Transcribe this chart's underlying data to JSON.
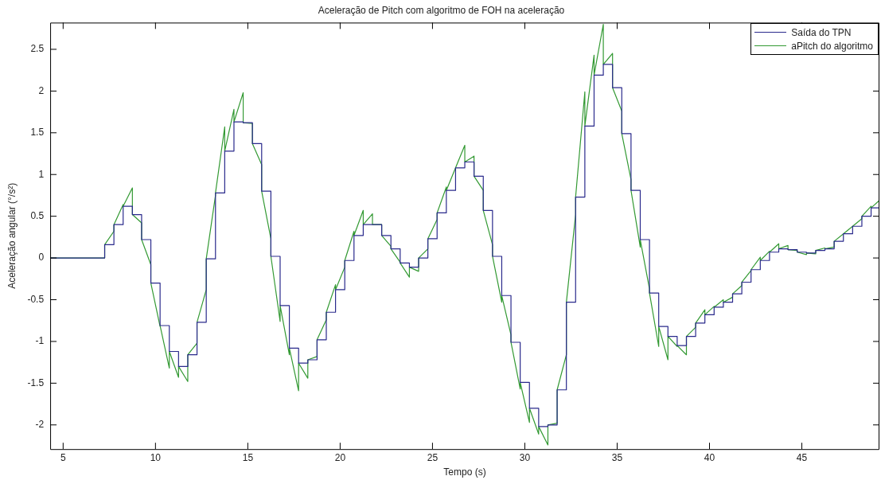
{
  "chart_data": {
    "type": "line",
    "title": "Aceleração de Pitch com algoritmo de FOH na aceleração",
    "xlabel": "Tempo (s)",
    "ylabel": "Aceleração angular (°/s²)",
    "xlim": [
      4.3,
      49.2
    ],
    "xticks": [
      5,
      10,
      15,
      20,
      25,
      30,
      35,
      40,
      45
    ],
    "ylim": [
      -2.29,
      2.82
    ],
    "yticks": [
      -2,
      -1.5,
      -1,
      -0.5,
      0,
      0.5,
      1,
      1.5,
      2,
      2.5
    ],
    "legend": "top right",
    "series": [
      {
        "name": "Saída do TPN",
        "type": "step",
        "color": "#2a2a8c",
        "x": [
          4.3,
          7.25,
          7.75,
          8.25,
          8.75,
          9.25,
          9.75,
          10.25,
          10.75,
          11.25,
          11.75,
          12.25,
          12.75,
          13.25,
          13.75,
          14.25,
          14.75,
          15.25,
          15.75,
          16.25,
          16.75,
          17.25,
          17.75,
          18.25,
          18.75,
          19.25,
          19.75,
          20.25,
          20.75,
          21.25,
          21.75,
          22.25,
          22.75,
          23.25,
          23.75,
          24.25,
          24.75,
          25.25,
          25.75,
          26.25,
          26.75,
          27.25,
          27.75,
          28.25,
          28.75,
          29.25,
          29.75,
          30.25,
          30.75,
          31.25,
          31.75,
          32.25,
          32.75,
          33.25,
          33.75,
          34.25,
          34.75,
          35.25,
          35.75,
          36.25,
          36.75,
          37.25,
          37.75,
          38.25,
          38.75,
          39.25,
          39.75,
          40.25,
          40.75,
          41.25,
          41.75,
          42.25,
          42.75,
          43.25,
          43.75,
          44.25,
          44.75,
          45.25,
          45.75,
          46.25,
          46.75,
          47.25,
          47.75,
          48.25,
          48.75,
          49.2
        ],
        "values": [
          0,
          0.16,
          0.4,
          0.62,
          0.52,
          0.22,
          -0.3,
          -0.81,
          -1.12,
          -1.3,
          -1.16,
          -0.77,
          -0.01,
          0.78,
          1.28,
          1.63,
          1.62,
          1.37,
          0.8,
          0.02,
          -0.57,
          -1.08,
          -1.26,
          -1.22,
          -0.98,
          -0.65,
          -0.38,
          -0.03,
          0.27,
          0.4,
          0.4,
          0.27,
          0.11,
          -0.06,
          -0.11,
          0.0,
          0.23,
          0.54,
          0.81,
          1.08,
          1.15,
          0.98,
          0.57,
          0.02,
          -0.45,
          -1.01,
          -1.49,
          -1.8,
          -2.02,
          -2.0,
          -1.58,
          -0.53,
          0.73,
          1.58,
          2.19,
          2.32,
          2.04,
          1.49,
          0.81,
          0.22,
          -0.42,
          -0.82,
          -0.94,
          -1.05,
          -0.94,
          -0.78,
          -0.68,
          -0.59,
          -0.53,
          -0.43,
          -0.29,
          -0.14,
          -0.03,
          0.07,
          0.11,
          0.1,
          0.07,
          0.06,
          0.09,
          0.11,
          0.2,
          0.29,
          0.38,
          0.5,
          0.6,
          0.6
        ]
      },
      {
        "name": "aPitch do algoritmo",
        "type": "line",
        "color": "#339933",
        "x": [
          4.3,
          7.25,
          7.25,
          7.75,
          7.75,
          8.25,
          8.25,
          8.75,
          8.75,
          9.25,
          9.25,
          9.75,
          9.75,
          10.25,
          10.25,
          10.75,
          10.75,
          11.25,
          11.25,
          11.75,
          11.75,
          12.25,
          12.25,
          12.75,
          12.75,
          13.25,
          13.25,
          13.75,
          13.75,
          14.25,
          14.25,
          14.75,
          14.75,
          15.25,
          15.25,
          15.75,
          15.75,
          16.25,
          16.25,
          16.75,
          16.75,
          17.25,
          17.25,
          17.75,
          17.75,
          18.25,
          18.25,
          18.75,
          18.75,
          19.25,
          19.25,
          19.75,
          19.75,
          20.25,
          20.25,
          20.75,
          20.75,
          21.25,
          21.25,
          21.75,
          21.75,
          22.25,
          22.25,
          22.75,
          22.75,
          23.25,
          23.25,
          23.75,
          23.75,
          24.25,
          24.25,
          24.75,
          24.75,
          25.25,
          25.25,
          25.75,
          25.75,
          26.25,
          26.25,
          26.75,
          26.75,
          27.25,
          27.25,
          27.75,
          27.75,
          28.25,
          28.25,
          28.75,
          28.75,
          29.25,
          29.25,
          29.75,
          29.75,
          30.25,
          30.25,
          30.75,
          30.75,
          31.25,
          31.25,
          31.75,
          31.75,
          32.25,
          32.25,
          32.75,
          32.75,
          33.25,
          33.25,
          33.75,
          33.75,
          34.25,
          34.25,
          34.75,
          34.75,
          35.25,
          35.25,
          35.75,
          35.75,
          36.25,
          36.25,
          36.75,
          36.75,
          37.25,
          37.25,
          37.75,
          37.75,
          38.25,
          38.25,
          38.75,
          38.75,
          39.25,
          39.25,
          39.75,
          39.75,
          40.25,
          40.25,
          40.75,
          40.75,
          41.25,
          41.25,
          41.75,
          41.75,
          42.25,
          42.25,
          42.75,
          42.75,
          43.25,
          43.25,
          43.75,
          43.75,
          44.25,
          44.25,
          44.75,
          44.75,
          45.25,
          45.25,
          45.75,
          45.75,
          46.25,
          46.25,
          46.75,
          46.75,
          47.25,
          47.25,
          47.75,
          47.75,
          48.25,
          48.25,
          48.75,
          48.75,
          49.2
        ],
        "values": [
          0,
          0,
          0.16,
          0.32,
          0.4,
          0.64,
          0.62,
          0.84,
          0.52,
          0.42,
          0.22,
          -0.08,
          -0.3,
          -0.82,
          -0.81,
          -1.32,
          -1.12,
          -1.43,
          -1.3,
          -1.48,
          -1.16,
          -1.02,
          -0.77,
          -0.38,
          -0.01,
          0.75,
          0.78,
          1.57,
          1.28,
          1.78,
          1.63,
          1.98,
          1.62,
          1.61,
          1.37,
          1.12,
          0.8,
          0.23,
          0.02,
          -0.76,
          -0.57,
          -1.16,
          -1.08,
          -1.59,
          -1.26,
          -1.44,
          -1.22,
          -1.18,
          -0.98,
          -0.74,
          -0.65,
          -0.32,
          -0.38,
          -0.11,
          -0.03,
          0.32,
          0.27,
          0.57,
          0.4,
          0.53,
          0.4,
          0.4,
          0.27,
          0.14,
          0.11,
          -0.05,
          -0.06,
          -0.23,
          -0.11,
          -0.16,
          0.0,
          0.11,
          0.23,
          0.46,
          0.54,
          0.85,
          0.81,
          1.08,
          1.08,
          1.35,
          1.15,
          1.22,
          0.98,
          0.81,
          0.57,
          0.16,
          0.02,
          -0.53,
          -0.45,
          -0.92,
          -1.01,
          -1.57,
          -1.49,
          -1.97,
          -1.8,
          -2.11,
          -2.02,
          -2.24,
          -2.0,
          -1.98,
          -1.58,
          -1.16,
          -0.53,
          0.52,
          0.73,
          1.99,
          1.58,
          2.43,
          2.19,
          2.8,
          2.32,
          2.45,
          2.04,
          1.76,
          1.49,
          0.94,
          0.81,
          0.13,
          0.22,
          -0.37,
          -0.42,
          -1.06,
          -0.82,
          -1.22,
          -0.94,
          -1.06,
          -1.05,
          -1.16,
          -0.94,
          -0.83,
          -0.78,
          -0.62,
          -0.68,
          -0.58,
          -0.59,
          -0.5,
          -0.53,
          -0.47,
          -0.43,
          -0.33,
          -0.29,
          -0.15,
          -0.14,
          0.01,
          -0.03,
          0.08,
          0.07,
          0.17,
          0.11,
          0.15,
          0.1,
          0.09,
          0.07,
          0.04,
          0.06,
          0.05,
          0.09,
          0.12,
          0.11,
          0.13,
          0.2,
          0.29,
          0.29,
          0.38,
          0.38,
          0.47,
          0.5,
          0.62,
          0.6,
          0.69
        ]
      }
    ]
  }
}
